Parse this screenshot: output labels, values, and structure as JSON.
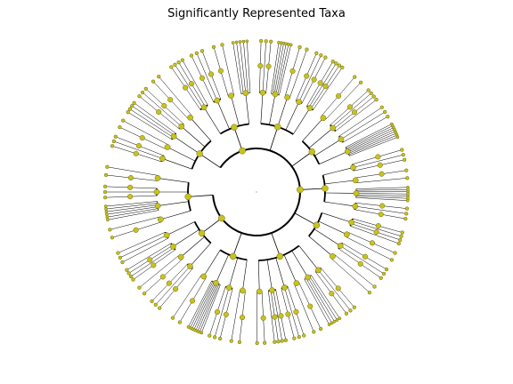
{
  "title": "Significantly Represented Taxa",
  "colors": {
    "node_fill": "#c8c21e",
    "node_stroke": "#6b6a12",
    "edge": "#000000",
    "background": "#ffffff"
  },
  "tree": {
    "type": "circular-cladogram",
    "phyla": [
      {
        "start": 196,
        "end": 232,
        "children": [
          [
            3,
            1
          ],
          [
            2,
            2
          ],
          [
            4,
            0
          ],
          [
            3,
            3
          ],
          [
            2,
            1
          ]
        ]
      },
      {
        "start": 234,
        "end": 268,
        "children": [
          [
            4,
            2
          ],
          [
            3,
            1
          ],
          [
            2,
            3
          ],
          [
            5,
            0
          ]
        ]
      },
      {
        "start": 270,
        "end": 306,
        "children": [
          [
            3,
            2
          ],
          [
            6,
            0
          ],
          [
            2,
            1
          ],
          [
            3,
            3
          ],
          [
            4,
            1
          ]
        ]
      },
      {
        "start": 308,
        "end": 340,
        "children": [
          [
            2,
            2
          ],
          [
            4,
            1
          ],
          [
            3,
            0
          ],
          [
            8,
            0
          ]
        ]
      },
      {
        "start": 342,
        "end": 372,
        "children": [
          [
            3,
            1
          ],
          [
            2,
            2
          ],
          [
            7,
            0
          ],
          [
            3,
            1
          ]
        ]
      },
      {
        "start": 374,
        "end": 404,
        "children": [
          [
            4,
            2
          ],
          [
            2,
            1
          ],
          [
            3,
            3
          ],
          [
            2,
            0
          ]
        ]
      },
      {
        "start": 408,
        "end": 452,
        "children": [
          [
            3,
            2
          ],
          [
            5,
            0
          ],
          [
            2,
            1
          ],
          [
            3,
            2
          ],
          [
            4,
            1
          ],
          [
            2,
            2
          ]
        ]
      },
      {
        "start": 454,
        "end": 486,
        "children": [
          [
            2,
            1
          ],
          [
            3,
            2
          ],
          [
            8,
            0
          ],
          [
            2,
            1
          ]
        ]
      },
      {
        "start": 488,
        "end": 518,
        "children": [
          [
            3,
            3
          ],
          [
            2,
            1
          ],
          [
            4,
            2
          ],
          [
            3,
            0
          ]
        ]
      },
      {
        "start": 520,
        "end": 552,
        "children": [
          [
            2,
            2
          ],
          [
            6,
            0
          ],
          [
            3,
            1
          ],
          [
            2,
            2
          ]
        ]
      }
    ]
  }
}
